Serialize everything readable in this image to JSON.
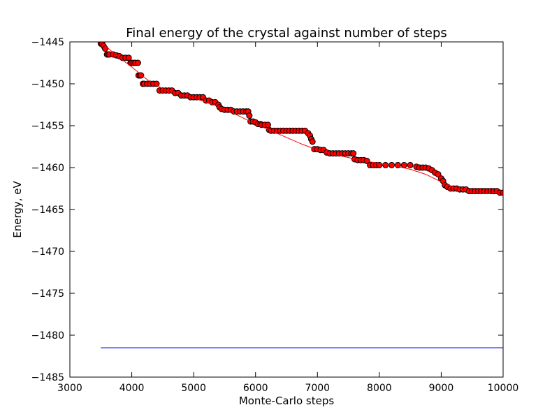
{
  "chart_data": {
    "type": "scatter",
    "title": "Final energy of the crystal against number of steps",
    "xlabel": "Monte-Carlo steps",
    "ylabel": "Energy, eV",
    "xlim": [
      3000,
      10000
    ],
    "ylim": [
      -1485,
      -1445
    ],
    "xticks": [
      3000,
      4000,
      5000,
      6000,
      7000,
      8000,
      9000,
      10000
    ],
    "yticks": [
      -1445,
      -1450,
      -1455,
      -1460,
      -1465,
      -1470,
      -1475,
      -1480,
      -1485
    ],
    "grid": false,
    "legend": "none",
    "series": [
      {
        "kind": "points",
        "color": "#ff0000",
        "edge_color": "#000000",
        "x": [
          3500,
          3520,
          3545,
          3570,
          3600,
          3620,
          3640,
          3700,
          3750,
          3800,
          3850,
          3900,
          3950,
          3980,
          4000,
          4030,
          4060,
          4100,
          4110,
          4130,
          4150,
          4180,
          4200,
          4250,
          4300,
          4350,
          4400,
          4450,
          4500,
          4550,
          4600,
          4650,
          4700,
          4750,
          4800,
          4850,
          4900,
          4950,
          5000,
          5050,
          5100,
          5150,
          5200,
          5250,
          5300,
          5350,
          5400,
          5420,
          5450,
          5500,
          5550,
          5600,
          5650,
          5700,
          5750,
          5800,
          5850,
          5880,
          5900,
          5920,
          5960,
          6000,
          6040,
          6080,
          6100,
          6150,
          6200,
          6220,
          6250,
          6300,
          6350,
          6400,
          6450,
          6500,
          6550,
          6600,
          6650,
          6700,
          6750,
          6800,
          6850,
          6880,
          6900,
          6920,
          6950,
          7000,
          7050,
          7100,
          7150,
          7200,
          7250,
          7300,
          7350,
          7400,
          7450,
          7500,
          7550,
          7580,
          7600,
          7650,
          7700,
          7750,
          7800,
          7850,
          7900,
          7950,
          8000,
          8100,
          8200,
          8300,
          8400,
          8500,
          8600,
          8650,
          8700,
          8750,
          8800,
          8850,
          8900,
          8950,
          9000,
          9030,
          9060,
          9100,
          9150,
          9200,
          9250,
          9300,
          9350,
          9400,
          9450,
          9500,
          9550,
          9600,
          9650,
          9700,
          9750,
          9800,
          9850,
          9900,
          9950,
          10000
        ],
        "y": [
          -1445.2,
          -1445.2,
          -1445.5,
          -1445.8,
          -1446.5,
          -1446.5,
          -1446.5,
          -1446.5,
          -1446.6,
          -1446.7,
          -1446.9,
          -1446.9,
          -1446.9,
          -1447.5,
          -1447.5,
          -1447.5,
          -1447.5,
          -1447.5,
          -1449.0,
          -1449.0,
          -1449.0,
          -1450.0,
          -1450.0,
          -1450.0,
          -1450.0,
          -1450.0,
          -1450.0,
          -1450.8,
          -1450.8,
          -1450.8,
          -1450.8,
          -1450.8,
          -1451.1,
          -1451.1,
          -1451.4,
          -1451.4,
          -1451.4,
          -1451.6,
          -1451.6,
          -1451.6,
          -1451.6,
          -1451.6,
          -1452.0,
          -1452.0,
          -1452.2,
          -1452.2,
          -1452.5,
          -1452.8,
          -1453.0,
          -1453.1,
          -1453.1,
          -1453.1,
          -1453.3,
          -1453.3,
          -1453.3,
          -1453.3,
          -1453.3,
          -1453.3,
          -1453.8,
          -1454.5,
          -1454.5,
          -1454.6,
          -1454.8,
          -1454.8,
          -1454.9,
          -1454.9,
          -1454.9,
          -1455.5,
          -1455.6,
          -1455.6,
          -1455.6,
          -1455.6,
          -1455.6,
          -1455.6,
          -1455.6,
          -1455.6,
          -1455.6,
          -1455.6,
          -1455.6,
          -1455.6,
          -1455.9,
          -1456.2,
          -1456.6,
          -1456.9,
          -1457.8,
          -1457.8,
          -1457.9,
          -1457.9,
          -1458.2,
          -1458.3,
          -1458.3,
          -1458.3,
          -1458.3,
          -1458.3,
          -1458.3,
          -1458.3,
          -1458.3,
          -1458.3,
          -1459.0,
          -1459.1,
          -1459.1,
          -1459.1,
          -1459.2,
          -1459.7,
          -1459.7,
          -1459.7,
          -1459.7,
          -1459.7,
          -1459.7,
          -1459.7,
          -1459.7,
          -1459.7,
          -1459.9,
          -1460.0,
          -1460.0,
          -1460.0,
          -1460.1,
          -1460.3,
          -1460.6,
          -1460.8,
          -1461.3,
          -1461.6,
          -1462.1,
          -1462.3,
          -1462.5,
          -1462.5,
          -1462.5,
          -1462.6,
          -1462.6,
          -1462.6,
          -1462.8,
          -1462.8,
          -1462.8,
          -1462.8,
          -1462.8,
          -1462.8,
          -1462.8,
          -1462.8,
          -1462.8,
          -1462.8,
          -1463.0,
          -1463.0
        ]
      },
      {
        "kind": "fit-line",
        "color": "#ff0000",
        "x": [
          3500,
          3750,
          4000,
          4250,
          4500,
          4750,
          5000,
          5250,
          5500,
          5750,
          6000,
          6250,
          6500,
          6750,
          7000,
          7250,
          7500,
          7750,
          8000,
          8250,
          8500,
          8750,
          9000,
          9250,
          9500,
          9750,
          10000
        ],
        "y": [
          -1445.0,
          -1446.6,
          -1448.0,
          -1449.5,
          -1450.6,
          -1451.2,
          -1451.7,
          -1452.3,
          -1453.0,
          -1453.9,
          -1454.8,
          -1455.6,
          -1456.4,
          -1457.2,
          -1457.9,
          -1458.4,
          -1458.8,
          -1459.2,
          -1459.5,
          -1459.8,
          -1460.2,
          -1460.8,
          -1461.7,
          -1462.5,
          -1463.0,
          -1463.1,
          -1462.8
        ]
      },
      {
        "kind": "line",
        "color": "#0000ff",
        "x": [
          3500,
          10000
        ],
        "y": [
          -1481.5,
          -1481.5
        ]
      }
    ]
  }
}
